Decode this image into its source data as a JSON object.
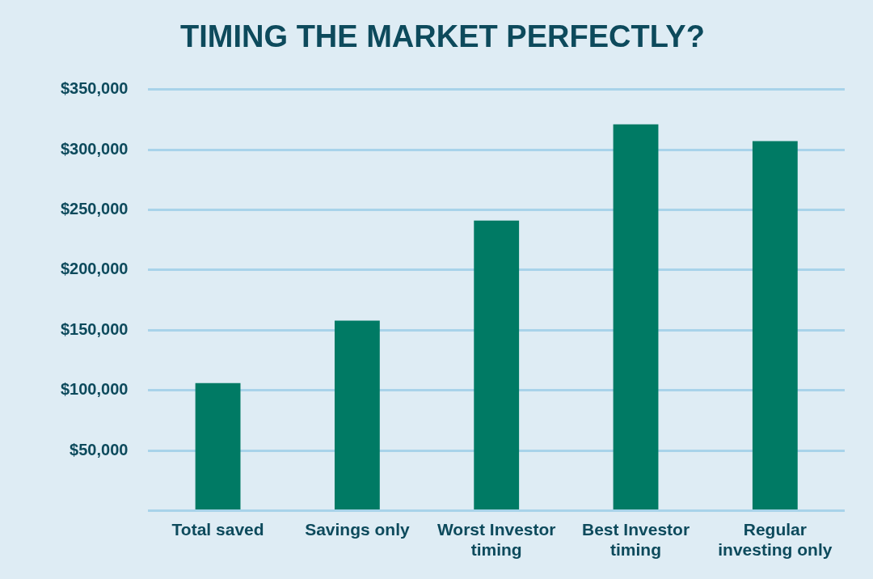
{
  "chart_data": {
    "type": "bar",
    "title": "TIMING THE MARKET PERFECTLY?",
    "categories": [
      "Total saved",
      "Savings only",
      "Worst Investor timing",
      "Best Investor timing",
      "Regular investing only"
    ],
    "values": [
      106000,
      158000,
      241000,
      321000,
      307000
    ],
    "color": "#007a64",
    "ylim": [
      0,
      350000
    ],
    "yticks": [
      {
        "value": 0,
        "label": null
      },
      {
        "value": 50000,
        "label": "$50,000"
      },
      {
        "value": 100000,
        "label": "$100,000"
      },
      {
        "value": 150000,
        "label": "$150,000"
      },
      {
        "value": 200000,
        "label": "$200,000"
      },
      {
        "value": 250000,
        "label": "$250,000"
      },
      {
        "value": 300000,
        "label": "$300,000"
      },
      {
        "value": 350000,
        "label": "$350,000"
      }
    ],
    "grid": "y",
    "legend": false
  }
}
